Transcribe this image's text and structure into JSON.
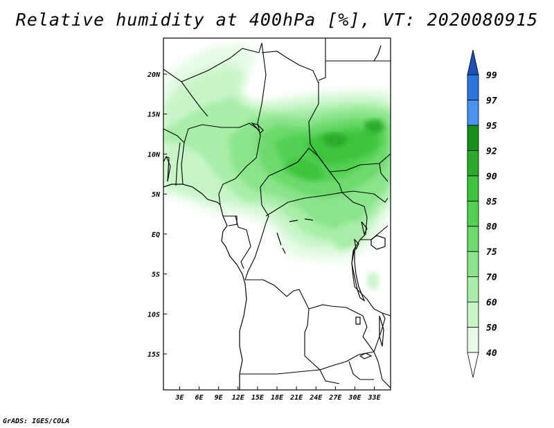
{
  "title": "Relative humidity at 400hPa [%], VT: 2020080915",
  "credit": "GrADS: IGES/COLA",
  "map": {
    "lat_range": [
      -19.5,
      24.5
    ],
    "lon_range": [
      0.5,
      35.5
    ],
    "lat_ticks": [
      {
        "value": 20,
        "label": "20N"
      },
      {
        "value": 15,
        "label": "15N"
      },
      {
        "value": 10,
        "label": "10N"
      },
      {
        "value": 5,
        "label": "5N"
      },
      {
        "value": 0,
        "label": "EQ"
      },
      {
        "value": -5,
        "label": "5S"
      },
      {
        "value": -10,
        "label": "10S"
      },
      {
        "value": -15,
        "label": "15S"
      }
    ],
    "lon_ticks": [
      {
        "value": 3,
        "label": "3E"
      },
      {
        "value": 6,
        "label": "6E"
      },
      {
        "value": 9,
        "label": "9E"
      },
      {
        "value": 12,
        "label": "12E"
      },
      {
        "value": 15,
        "label": "15E"
      },
      {
        "value": 18,
        "label": "18E"
      },
      {
        "value": 21,
        "label": "21E"
      },
      {
        "value": 24,
        "label": "24E"
      },
      {
        "value": 27,
        "label": "27E"
      },
      {
        "value": 30,
        "label": "30E"
      },
      {
        "value": 33,
        "label": "33E"
      }
    ]
  },
  "colorbar": {
    "levels": [
      "40",
      "50",
      "60",
      "70",
      "75",
      "80",
      "85",
      "90",
      "92",
      "95",
      "97",
      "99"
    ],
    "colors": [
      "#e6fbe6",
      "#c8f5c8",
      "#a8eea8",
      "#8ae48a",
      "#6cda6c",
      "#52d052",
      "#3cc43c",
      "#2aab2a",
      "#179017",
      "#4a94f0",
      "#2c74e0",
      "#1858c8"
    ],
    "under_color": "#ffffff",
    "over_color": "#1c4fb8"
  },
  "colors": {
    "land_outline": "#000000",
    "frame": "#000000"
  }
}
